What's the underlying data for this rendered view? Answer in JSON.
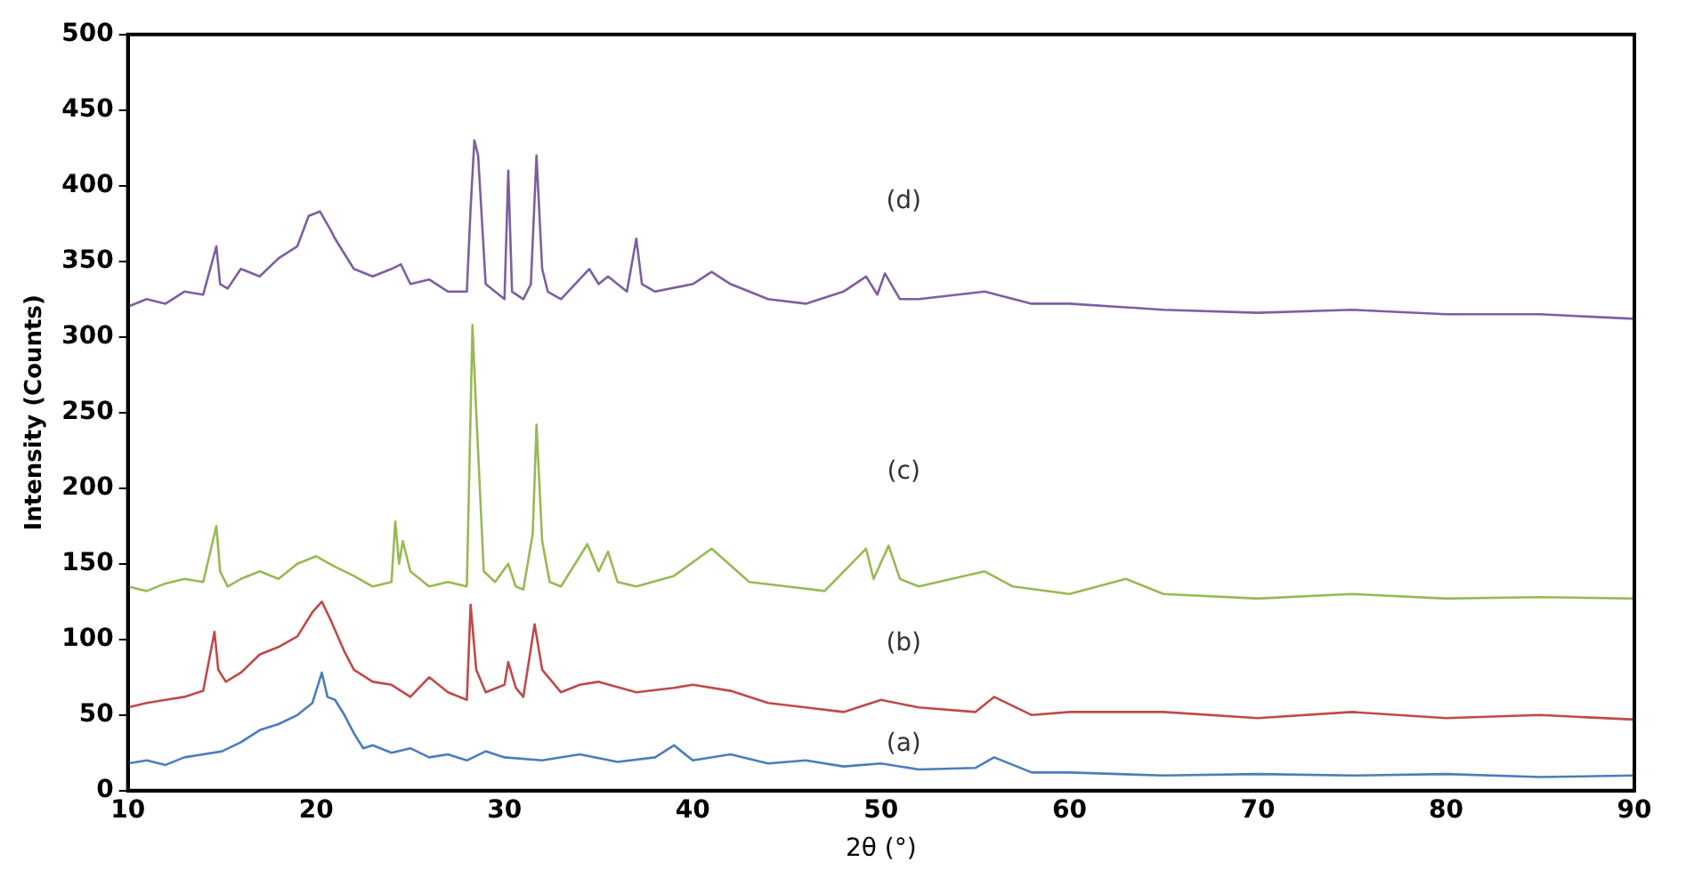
{
  "chart_data": {
    "type": "line",
    "xlabel": "2θ (°)",
    "ylabel": "Intensity (Counts)",
    "xlim": [
      10,
      90
    ],
    "ylim": [
      0,
      500
    ],
    "xticks": [
      10,
      20,
      30,
      40,
      50,
      60,
      70,
      80,
      90
    ],
    "yticks": [
      0,
      50,
      100,
      150,
      200,
      250,
      300,
      350,
      400,
      450,
      500
    ],
    "grid": false,
    "legend": false,
    "marker": "none",
    "line_style": "solid",
    "series": [
      {
        "name": "(a)",
        "color": "#4a7ebb",
        "x": [
          10,
          11,
          12,
          13,
          14,
          15,
          16,
          17,
          18,
          19,
          19.8,
          20.3,
          20.6,
          21,
          21.5,
          22,
          22.5,
          23,
          24,
          25,
          26,
          27,
          28,
          29,
          30,
          32,
          34,
          36,
          38,
          39,
          40,
          42,
          44,
          46,
          48,
          50,
          52,
          55,
          56,
          58,
          60,
          65,
          70,
          75,
          80,
          85,
          90
        ],
        "values": [
          18,
          20,
          17,
          22,
          24,
          26,
          32,
          40,
          44,
          50,
          58,
          78,
          62,
          60,
          50,
          38,
          28,
          30,
          25,
          28,
          22,
          24,
          20,
          26,
          22,
          20,
          24,
          19,
          22,
          30,
          20,
          24,
          18,
          20,
          16,
          18,
          14,
          15,
          22,
          12,
          12,
          10,
          11,
          10,
          11,
          9,
          10
        ]
      },
      {
        "name": "(b)",
        "color": "#be4b48",
        "x": [
          10,
          11,
          12,
          13,
          14,
          14.6,
          14.8,
          15.2,
          16,
          17,
          18,
          19,
          19.8,
          20.3,
          20.8,
          21.5,
          22,
          23,
          24,
          25,
          26,
          27,
          28,
          28.2,
          28.5,
          29,
          30,
          30.2,
          30.6,
          31,
          31.6,
          32,
          33,
          34,
          35,
          37,
          39,
          40,
          42,
          44,
          46,
          48,
          50,
          52,
          55,
          56,
          58,
          60,
          65,
          70,
          75,
          80,
          85,
          90
        ],
        "values": [
          55,
          58,
          60,
          62,
          66,
          105,
          80,
          72,
          78,
          90,
          95,
          102,
          118,
          125,
          112,
          92,
          80,
          72,
          70,
          62,
          75,
          65,
          60,
          123,
          80,
          65,
          70,
          85,
          68,
          62,
          110,
          80,
          65,
          70,
          72,
          65,
          68,
          70,
          66,
          58,
          55,
          52,
          60,
          55,
          52,
          62,
          50,
          52,
          52,
          48,
          52,
          48,
          50,
          47
        ]
      },
      {
        "name": "(c)",
        "color": "#98b954",
        "x": [
          10,
          11,
          12,
          13,
          14,
          14.7,
          14.9,
          15.3,
          16,
          17,
          18,
          19,
          20,
          21,
          22,
          23,
          24,
          24.2,
          24.4,
          24.6,
          25,
          26,
          27,
          28,
          28.3,
          28.5,
          28.9,
          29.5,
          30.2,
          30.6,
          31,
          31.5,
          31.7,
          32,
          32.4,
          33,
          34.4,
          35,
          35.5,
          36,
          37,
          39,
          41,
          43,
          45,
          47,
          49.2,
          49.6,
          50.4,
          51,
          52,
          55.5,
          57,
          60,
          63,
          65,
          70,
          75,
          80,
          85,
          90
        ],
        "values": [
          135,
          132,
          137,
          140,
          138,
          175,
          145,
          135,
          140,
          145,
          140,
          150,
          155,
          148,
          142,
          135,
          138,
          178,
          150,
          165,
          145,
          135,
          138,
          135,
          308,
          250,
          145,
          138,
          150,
          135,
          133,
          170,
          242,
          165,
          138,
          135,
          163,
          145,
          158,
          138,
          135,
          142,
          160,
          138,
          135,
          132,
          160,
          140,
          162,
          140,
          135,
          145,
          135,
          130,
          140,
          130,
          127,
          130,
          127,
          128,
          127
        ]
      },
      {
        "name": "(d)",
        "color": "#7d5fa0",
        "x": [
          10,
          11,
          12,
          13,
          14,
          14.7,
          14.9,
          15.3,
          16,
          17,
          18,
          19,
          19.6,
          20.2,
          20.8,
          21,
          22,
          23,
          24,
          24.5,
          25,
          26,
          27,
          28,
          28.2,
          28.4,
          28.6,
          29,
          29.5,
          30,
          30.2,
          30.4,
          31,
          31.4,
          31.7,
          32,
          32.3,
          33,
          34.5,
          35,
          35.5,
          36.5,
          37,
          37.3,
          38,
          40,
          41,
          42,
          44,
          46,
          48,
          49.2,
          49.8,
          50.2,
          51,
          52,
          55.5,
          58,
          60,
          65,
          70,
          75,
          80,
          85,
          90
        ],
        "values": [
          320,
          325,
          322,
          330,
          328,
          360,
          335,
          332,
          345,
          340,
          352,
          360,
          380,
          383,
          370,
          365,
          345,
          340,
          345,
          348,
          335,
          338,
          330,
          330,
          385,
          430,
          420,
          335,
          330,
          325,
          410,
          330,
          325,
          335,
          420,
          345,
          330,
          325,
          345,
          335,
          340,
          330,
          365,
          335,
          330,
          335,
          343,
          335,
          325,
          322,
          330,
          340,
          328,
          342,
          325,
          325,
          330,
          322,
          322,
          318,
          316,
          318,
          315,
          315,
          312
        ]
      }
    ]
  }
}
